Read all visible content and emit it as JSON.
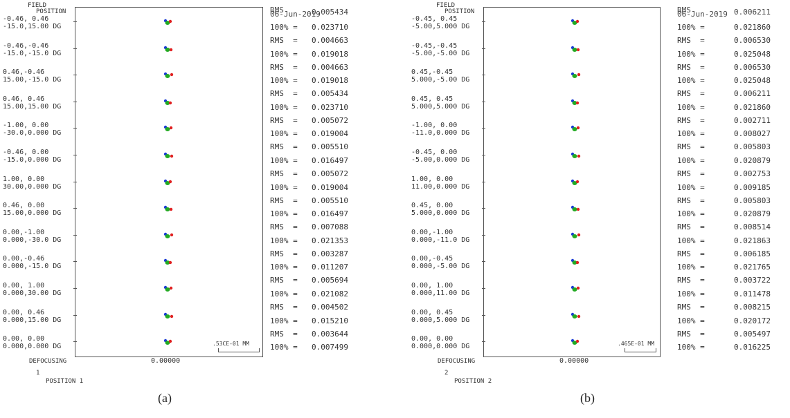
{
  "panels": [
    {
      "id": "a",
      "caption": "(a)",
      "header": {
        "field": "FIELD",
        "position": "POSITION"
      },
      "date_text": "06-Jun-2019",
      "date_overlap": "RMS",
      "top_rms": "0.005434",
      "fields": [
        {
          "l1": "-0.46, 0.46",
          "l2": "-15.0,15.00 DG"
        },
        {
          "l1": "-0.46,-0.46",
          "l2": "-15.0,-15.0 DG"
        },
        {
          "l1": "0.46,-0.46",
          "l2": "15.00,-15.0 DG"
        },
        {
          "l1": "0.46, 0.46",
          "l2": "15.00,15.00 DG"
        },
        {
          "l1": "-1.00, 0.00",
          "l2": "-30.0,0.000 DG"
        },
        {
          "l1": "-0.46, 0.00",
          "l2": "-15.0,0.000 DG"
        },
        {
          "l1": "1.00, 0.00",
          "l2": "30.00,0.000 DG"
        },
        {
          "l1": "0.46, 0.00",
          "l2": "15.00,0.000 DG"
        },
        {
          "l1": "0.00,-1.00",
          "l2": "0.000,-30.0 DG"
        },
        {
          "l1": "0.00,-0.46",
          "l2": "0.000,-15.0 DG"
        },
        {
          "l1": "0.00, 1.00",
          "l2": "0.000,30.00 DG"
        },
        {
          "l1": "0.00, 0.46",
          "l2": "0.000,15.00 DG"
        },
        {
          "l1": "0.00, 0.00",
          "l2": "0.000,0.000 DG"
        }
      ],
      "pct_values": [
        "0.023710",
        "0.019018",
        "0.019018",
        "0.023710",
        "0.019004",
        "0.016497",
        "0.019004",
        "0.016497",
        "0.021353",
        "0.011207",
        "0.021082",
        "0.015210",
        "0.007499"
      ],
      "rms_values": [
        "0.004663",
        "0.004663",
        "0.005434",
        "0.005072",
        "0.005510",
        "0.005072",
        "0.005510",
        "0.007088",
        "0.003287",
        "0.005694",
        "0.004502",
        "0.003644"
      ],
      "pct_key": "100% =",
      "rms_key": "RMS  =",
      "scale_label": ".53CE-01 MM",
      "defocusing_label": "DEFOCUSING",
      "defocusing_value": "0.00000",
      "position_number": "1",
      "position_label": "POSITION 1",
      "spot_colors": [
        "#1a3bd6",
        "#22aa22",
        "#e02020"
      ]
    },
    {
      "id": "b",
      "caption": "(b)",
      "header": {
        "field": "FIELD",
        "position": "POSITION"
      },
      "date_text": "06-Jun-2019",
      "date_overlap": "RMS",
      "top_rms": "0.006211",
      "fields": [
        {
          "l1": "-0.45, 0.45",
          "l2": "-5.00,5.000 DG"
        },
        {
          "l1": "-0.45,-0.45",
          "l2": "-5.00,-5.00 DG"
        },
        {
          "l1": "0.45,-0.45",
          "l2": "5.000,-5.00 DG"
        },
        {
          "l1": "0.45, 0.45",
          "l2": "5.000,5.000 DG"
        },
        {
          "l1": "-1.00, 0.00",
          "l2": "-11.0,0.000 DG"
        },
        {
          "l1": "-0.45, 0.00",
          "l2": "-5.00,0.000 DG"
        },
        {
          "l1": "1.00, 0.00",
          "l2": "11.00,0.000 DG"
        },
        {
          "l1": "0.45, 0.00",
          "l2": "5.000,0.000 DG"
        },
        {
          "l1": "0.00,-1.00",
          "l2": "0.000,-11.0 DG"
        },
        {
          "l1": "0.00,-0.45",
          "l2": "0.000,-5.00 DG"
        },
        {
          "l1": "0.00, 1.00",
          "l2": "0.000,11.00 DG"
        },
        {
          "l1": "0.00, 0.45",
          "l2": "0.000,5.000 DG"
        },
        {
          "l1": "0.00, 0.00",
          "l2": "0.000,0.000 DG"
        }
      ],
      "pct_values": [
        "0.021860",
        "0.025048",
        "0.025048",
        "0.021860",
        "0.008027",
        "0.020879",
        "0.009185",
        "0.020879",
        "0.021863",
        "0.021765",
        "0.011478",
        "0.020172",
        "0.016225"
      ],
      "rms_values": [
        "0.006530",
        "0.006530",
        "0.006211",
        "0.002711",
        "0.005803",
        "0.002753",
        "0.005803",
        "0.008514",
        "0.006185",
        "0.003722",
        "0.008215",
        "0.005497"
      ],
      "pct_key": "100% =",
      "rms_key": "RMS  =",
      "scale_label": ".465E-01 MM",
      "defocusing_label": "DEFOCUSING",
      "defocusing_value": "0.00000",
      "position_number": "2",
      "position_label": "POSITION 2",
      "spot_colors": [
        "#1a3bd6",
        "#22aa22",
        "#e02020"
      ]
    }
  ]
}
